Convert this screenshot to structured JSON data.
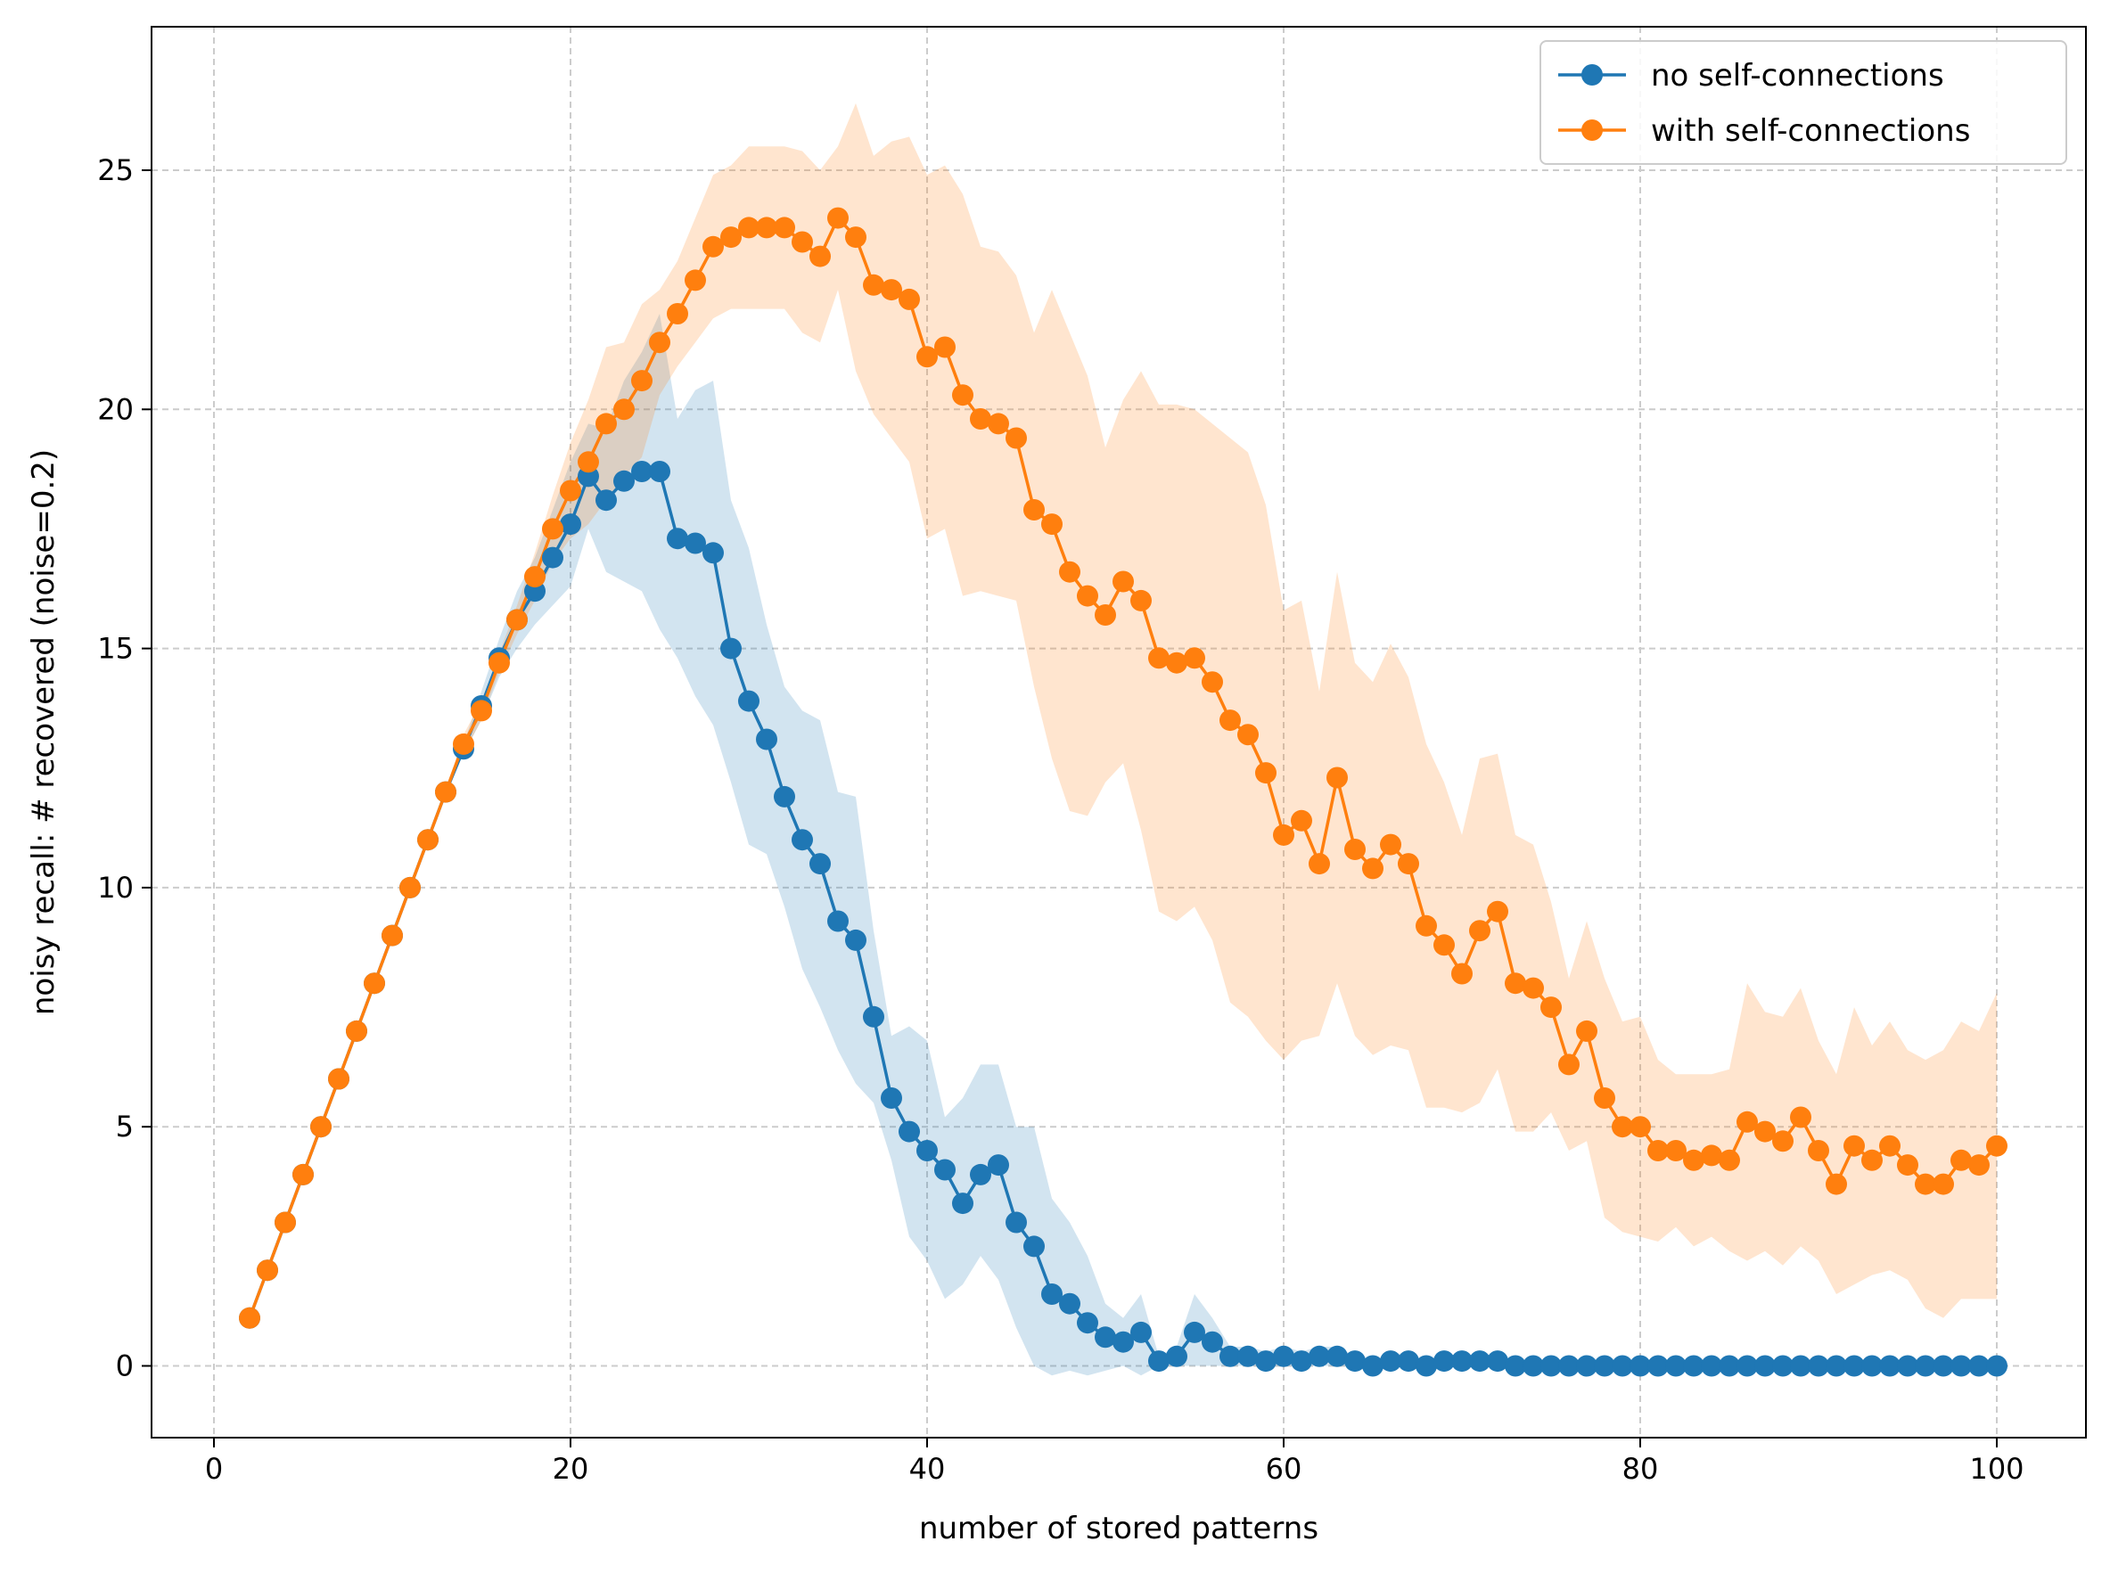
{
  "chart_data": {
    "type": "line",
    "xlabel": "number of stored patterns",
    "ylabel": "noisy recall: # recovered (noise=0.2)",
    "xlim": [
      -3.5,
      105
    ],
    "ylim": [
      -1.5,
      28
    ],
    "xticks": [
      0,
      20,
      40,
      60,
      80,
      100
    ],
    "yticks": [
      0,
      5,
      10,
      15,
      20,
      25
    ],
    "grid": true,
    "legend_position": "top-right",
    "x": [
      2,
      3,
      4,
      5,
      6,
      7,
      8,
      9,
      10,
      11,
      12,
      13,
      14,
      15,
      16,
      17,
      18,
      19,
      20,
      21,
      22,
      23,
      24,
      25,
      26,
      27,
      28,
      29,
      30,
      31,
      32,
      33,
      34,
      35,
      36,
      37,
      38,
      39,
      40,
      41,
      42,
      43,
      44,
      45,
      46,
      47,
      48,
      49,
      50,
      51,
      52,
      53,
      54,
      55,
      56,
      57,
      58,
      59,
      60,
      61,
      62,
      63,
      64,
      65,
      66,
      67,
      68,
      69,
      70,
      71,
      72,
      73,
      74,
      75,
      76,
      77,
      78,
      79,
      80,
      81,
      82,
      83,
      84,
      85,
      86,
      87,
      88,
      89,
      90,
      91,
      92,
      93,
      94,
      95,
      96,
      97,
      98,
      99,
      100
    ],
    "series": [
      {
        "name": "no self-connections",
        "color": "#1f77b4",
        "values": [
          1,
          2,
          3,
          4,
          5,
          6,
          7,
          8,
          9,
          10,
          11,
          12,
          12.9,
          13.8,
          14.8,
          15.6,
          16.2,
          16.9,
          17.6,
          18.6,
          18.1,
          18.5,
          18.7,
          18.7,
          17.3,
          17.2,
          17,
          15,
          13.9,
          13.1,
          11.9,
          11,
          10.5,
          9.3,
          8.9,
          7.3,
          5.6,
          4.9,
          4.5,
          4.1,
          3.4,
          4,
          4.2,
          3,
          2.5,
          1.5,
          1.3,
          0.9,
          0.6,
          0.5,
          0.7,
          0.1,
          0.2,
          0.7,
          0.5,
          0.2,
          0.2,
          0.1,
          0.2,
          0.1,
          0.2,
          0.2,
          0.1,
          0,
          0.1,
          0.1,
          0,
          0.1,
          0.1,
          0.1,
          0.1,
          0,
          0,
          0,
          0,
          0,
          0,
          0,
          0,
          0,
          0,
          0,
          0,
          0,
          0,
          0,
          0,
          0,
          0,
          0,
          0,
          0,
          0,
          0,
          0,
          0,
          0,
          0,
          0
        ],
        "band_low": [
          1,
          2,
          3,
          4,
          5,
          6,
          7,
          8,
          9,
          10,
          11,
          12,
          12.8,
          13.5,
          14.4,
          15.0,
          15.5,
          15.9,
          16.3,
          17.5,
          16.6,
          16.4,
          16.2,
          15.4,
          14.8,
          14.0,
          13.4,
          12.2,
          10.9,
          10.7,
          9.6,
          8.3,
          7.5,
          6.6,
          5.9,
          5.5,
          4.3,
          2.7,
          2.2,
          1.4,
          1.7,
          2.3,
          1.8,
          0.8,
          0,
          -0.2,
          -0.1,
          -0.2,
          -0.1,
          0,
          -0.2,
          0,
          0,
          0,
          0,
          0,
          0,
          0,
          0,
          0,
          0,
          0,
          0,
          0,
          0,
          0,
          0,
          0,
          0,
          0,
          0,
          0,
          0,
          0,
          0,
          0,
          0,
          0,
          0,
          0,
          0,
          0,
          0,
          0,
          0,
          0,
          0,
          0,
          0,
          0,
          0,
          0,
          0,
          0,
          0,
          0,
          0,
          0,
          0
        ],
        "band_high": [
          1,
          2,
          3,
          4,
          5,
          6,
          7,
          8,
          9,
          10,
          11,
          12,
          13.0,
          14.1,
          15.2,
          16.2,
          16.9,
          17.9,
          18.9,
          19.7,
          19.6,
          20.6,
          21.2,
          22.0,
          19.8,
          20.4,
          20.6,
          18.1,
          17.1,
          15.5,
          14.2,
          13.7,
          13.5,
          12.0,
          11.9,
          9.1,
          6.9,
          7.1,
          6.8,
          5.2,
          5.6,
          6.3,
          6.3,
          5.0,
          5.0,
          3.5,
          3.0,
          2.3,
          1.3,
          1.0,
          1.5,
          0.2,
          0.4,
          1.5,
          1.0,
          0.4,
          0.4,
          0.3,
          0.4,
          0.3,
          0.4,
          0.4,
          0.2,
          0,
          0.3,
          0.2,
          0,
          0.2,
          0.2,
          0.2,
          0.2,
          0,
          0,
          0,
          0,
          0,
          0,
          0,
          0,
          0,
          0,
          0,
          0,
          0,
          0,
          0,
          0,
          0,
          0,
          0,
          0,
          0,
          0,
          0,
          0,
          0,
          0,
          0,
          0
        ]
      },
      {
        "name": "with self-connections",
        "color": "#ff7f0e",
        "values": [
          1,
          2,
          3,
          4,
          5,
          6,
          7,
          8,
          9,
          10,
          11,
          12,
          13,
          13.7,
          14.7,
          15.6,
          16.5,
          17.5,
          18.3,
          18.9,
          19.7,
          20,
          20.6,
          21.4,
          22,
          22.7,
          23.4,
          23.6,
          23.8,
          23.8,
          23.8,
          23.5,
          23.2,
          24,
          23.6,
          22.6,
          22.5,
          22.3,
          21.1,
          21.3,
          20.3,
          19.8,
          19.7,
          19.4,
          17.9,
          17.6,
          16.6,
          16.1,
          15.7,
          16.4,
          16,
          14.8,
          14.7,
          14.8,
          14.3,
          13.5,
          13.2,
          12.4,
          11.1,
          11.4,
          10.5,
          12.3,
          10.8,
          10.4,
          10.9,
          10.5,
          9.2,
          8.8,
          8.2,
          9.1,
          9.5,
          8,
          7.9,
          7.5,
          6.3,
          7,
          5.6,
          5,
          5,
          4.5,
          4.5,
          4.3,
          4.4,
          4.3,
          5.1,
          4.9,
          4.7,
          5.2,
          4.5,
          3.8,
          4.6,
          4.3,
          4.6,
          4.2,
          3.8,
          3.8,
          4.3,
          4.2,
          4.6
        ],
        "band_low": [
          1,
          2,
          3,
          4,
          5,
          6,
          7,
          8,
          9,
          10,
          11,
          12,
          12.8,
          13.5,
          14.5,
          15.3,
          16.0,
          16.8,
          17.3,
          17.6,
          18.1,
          18.6,
          19.0,
          20.3,
          20.9,
          21.4,
          21.9,
          22.1,
          22.1,
          22.1,
          22.1,
          21.6,
          21.4,
          22.5,
          20.8,
          19.9,
          19.4,
          18.9,
          17.3,
          17.5,
          16.1,
          16.2,
          16.1,
          16.0,
          14.2,
          12.7,
          11.6,
          11.5,
          12.2,
          12.6,
          11.2,
          9.5,
          9.3,
          9.6,
          8.9,
          7.6,
          7.3,
          6.8,
          6.4,
          6.8,
          6.9,
          8.0,
          6.9,
          6.5,
          6.7,
          6.6,
          5.4,
          5.4,
          5.3,
          5.5,
          6.2,
          4.9,
          4.9,
          5.3,
          4.5,
          4.7,
          3.1,
          2.8,
          2.7,
          2.6,
          2.9,
          2.5,
          2.7,
          2.4,
          2.2,
          2.4,
          2.1,
          2.5,
          2.2,
          1.5,
          1.7,
          1.9,
          2.0,
          1.8,
          1.2,
          1.0,
          1.4,
          1.4,
          1.4
        ],
        "band_high": [
          1,
          2,
          3,
          4,
          5,
          6,
          7,
          8,
          9,
          10,
          11,
          12,
          13.2,
          13.9,
          14.9,
          15.9,
          17.0,
          18.2,
          19.3,
          20.2,
          21.3,
          21.4,
          22.2,
          22.5,
          23.1,
          24.0,
          24.9,
          25.1,
          25.5,
          25.5,
          25.5,
          25.4,
          25.0,
          25.5,
          26.4,
          25.3,
          25.6,
          25.7,
          24.9,
          25.1,
          24.5,
          23.4,
          23.3,
          22.8,
          21.6,
          22.5,
          21.6,
          20.7,
          19.2,
          20.2,
          20.8,
          20.1,
          20.1,
          20.0,
          19.7,
          19.4,
          19.1,
          18.0,
          15.8,
          16.0,
          14.1,
          16.6,
          14.7,
          14.3,
          15.1,
          14.4,
          13.0,
          12.2,
          11.1,
          12.7,
          12.8,
          11.1,
          10.9,
          9.7,
          8.1,
          9.3,
          8.1,
          7.2,
          7.3,
          6.4,
          6.1,
          6.1,
          6.1,
          6.2,
          8.0,
          7.4,
          7.3,
          7.9,
          6.8,
          6.1,
          7.5,
          6.7,
          7.2,
          6.6,
          6.4,
          6.6,
          7.2,
          7.0,
          7.8
        ]
      }
    ]
  }
}
